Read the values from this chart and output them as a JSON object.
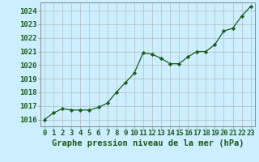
{
  "hours": [
    0,
    1,
    2,
    3,
    4,
    5,
    6,
    7,
    8,
    9,
    10,
    11,
    12,
    13,
    14,
    15,
    16,
    17,
    18,
    19,
    20,
    21,
    22,
    23
  ],
  "pressure": [
    1016.0,
    1016.5,
    1016.8,
    1016.7,
    1016.7,
    1016.7,
    1016.9,
    1017.2,
    1018.0,
    1018.7,
    1019.4,
    1020.9,
    1020.8,
    1020.5,
    1020.1,
    1020.1,
    1020.6,
    1021.0,
    1021.0,
    1021.5,
    1022.5,
    1022.7,
    1023.6,
    1024.3
  ],
  "line_color": "#1a5c1a",
  "marker": "D",
  "marker_size": 2.2,
  "bg_color": "#cceeff",
  "grid_color": "#b0b0b0",
  "xlabel": "Graphe pression niveau de la mer (hPa)",
  "ylim": [
    1015.5,
    1024.6
  ],
  "yticks": [
    1016,
    1017,
    1018,
    1019,
    1020,
    1021,
    1022,
    1023,
    1024
  ],
  "xticks": [
    0,
    1,
    2,
    3,
    4,
    5,
    6,
    7,
    8,
    9,
    10,
    11,
    12,
    13,
    14,
    15,
    16,
    17,
    18,
    19,
    20,
    21,
    22,
    23
  ],
  "xtick_labels": [
    "0",
    "1",
    "2",
    "3",
    "4",
    "5",
    "6",
    "7",
    "8",
    "9",
    "10",
    "11",
    "12",
    "13",
    "14",
    "15",
    "16",
    "17",
    "18",
    "19",
    "20",
    "21",
    "22",
    "23"
  ],
  "xlabel_fontsize": 7.5,
  "tick_fontsize": 6.5,
  "tick_color": "#1a5c1a",
  "label_color": "#1a5c1a",
  "spine_color": "#888888"
}
